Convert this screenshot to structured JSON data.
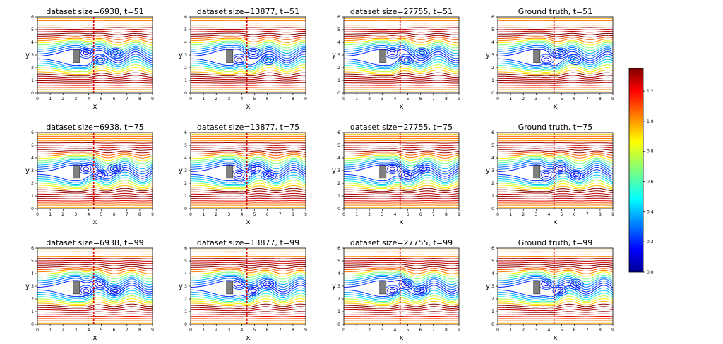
{
  "figure": {
    "panels": [
      {
        "title": "dataset size=6938, t=51"
      },
      {
        "title": "dataset size=13877, t=51"
      },
      {
        "title": "dataset size=27755, t=51"
      },
      {
        "title": "Ground truth, t=51"
      },
      {
        "title": "dataset size=6938, t=75"
      },
      {
        "title": "dataset size=13877, t=75"
      },
      {
        "title": "dataset size=27755, t=75"
      },
      {
        "title": "Ground truth, t=75"
      },
      {
        "title": "dataset size=6938, t=99"
      },
      {
        "title": "dataset size=13877, t=99"
      },
      {
        "title": "dataset size=27755, t=99"
      },
      {
        "title": "Ground truth, t=99"
      }
    ]
  },
  "chart_data": {
    "type": "streamplot",
    "xlabel": "x",
    "ylabel": "y",
    "xlim": [
      0,
      9
    ],
    "ylim": [
      0,
      6
    ],
    "xticks": [
      "0",
      "1",
      "2",
      "3",
      "4",
      "5",
      "6",
      "7",
      "8",
      "9"
    ],
    "yticks": [
      "0",
      "1",
      "2",
      "3",
      "4",
      "5",
      "6"
    ],
    "obstacle": {
      "x": [
        2.8,
        3.3
      ],
      "y": [
        2.4,
        3.4
      ],
      "color": "#808080"
    },
    "colorbar": {
      "colormap": "jet",
      "range": [
        0,
        1.35
      ],
      "ticks": [
        "0.0",
        "0.2",
        "0.4",
        "0.6",
        "0.8",
        "1.0",
        "1.2"
      ]
    }
  }
}
